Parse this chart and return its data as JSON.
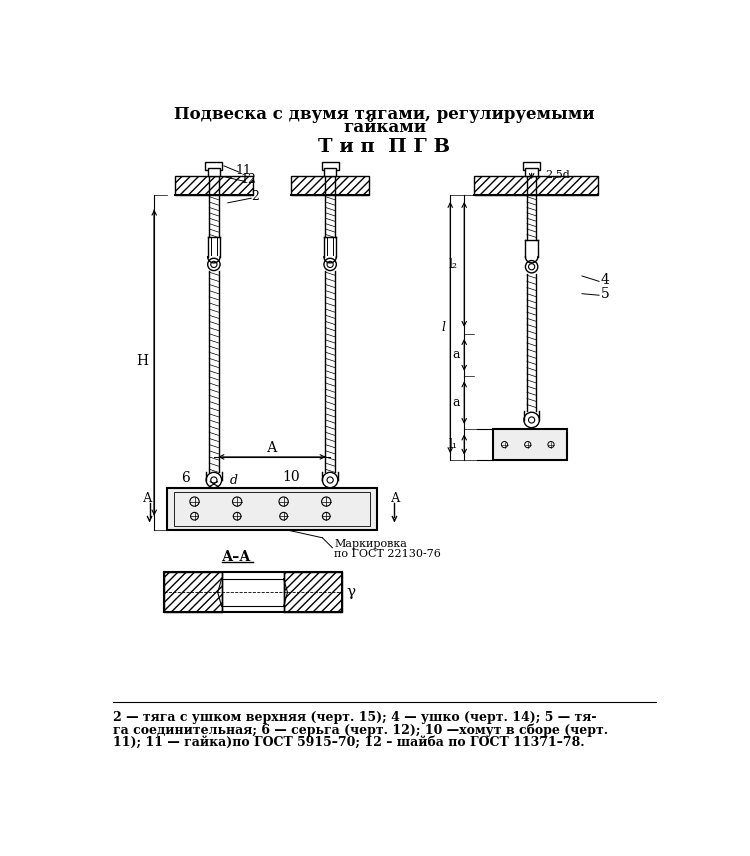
{
  "title_line1": "Подвеска с двумя тягами, регулируемыми",
  "title_line2": "гайками",
  "title_line3": "Т и п  П Г В",
  "bg_color": "#ffffff",
  "caption_line1": "2 — тяга с ушком верхняя (черт. 15); 4 — ушко (черт. 14); 5 — тя-",
  "caption_line2": "га соединительная; 6 — серьга (черт. 12); 10 —хомут в сборе (черт.",
  "caption_line3": "11); 11 — гайка)по ГОСТ 5915–70; 12 – шайба по ГОСТ 11371–78."
}
